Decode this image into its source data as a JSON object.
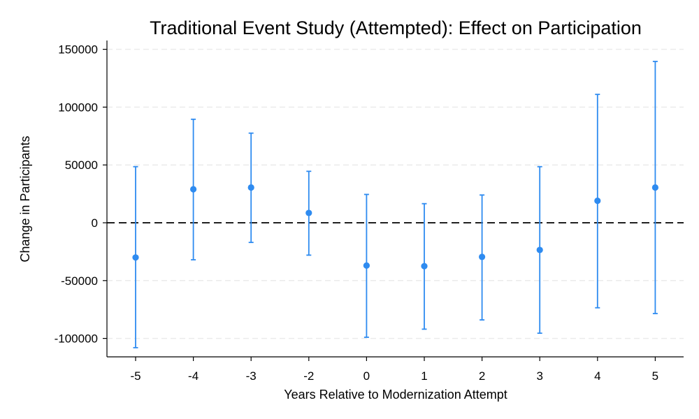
{
  "chart_data": {
    "type": "scatter",
    "title": "Traditional Event Study (Attempted): Effect on Participation",
    "xlabel": "Years Relative to Modernization Attempt",
    "ylabel": "Change in Participants",
    "categories": [
      "-5",
      "-4",
      "-3",
      "-2",
      "0",
      "1",
      "2",
      "3",
      "4",
      "5"
    ],
    "yticks": [
      "150000",
      "100000",
      "50000",
      "0",
      "-50000",
      "-100000"
    ],
    "ylim": [
      -115000,
      158000
    ],
    "grid": true,
    "reference_line": 0,
    "series": [
      {
        "values": [
          -30000,
          29000,
          30500,
          8500,
          -37000,
          -37500,
          -29500,
          -23500,
          19000,
          30500
        ],
        "ci_low": [
          -108000,
          -32000,
          -17000,
          -28000,
          -99000,
          -92000,
          -84000,
          -95500,
          -73500,
          -78500
        ],
        "ci_high": [
          48500,
          89500,
          77500,
          44500,
          24500,
          16500,
          24000,
          48500,
          111000,
          139500
        ]
      }
    ],
    "colors": {
      "point": "#2E8BF0",
      "reference": "#000000",
      "grid": "#EBEBEB"
    }
  }
}
